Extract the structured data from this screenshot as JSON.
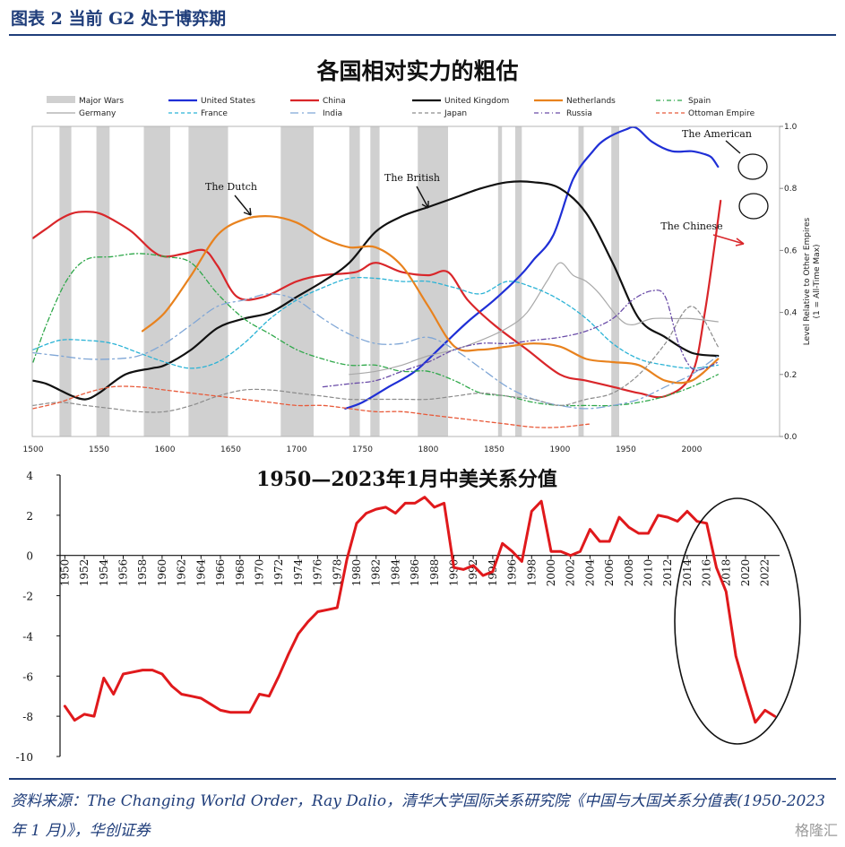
{
  "header": {
    "title": "图表 2   当前 G2 处于博弈期"
  },
  "footer": {
    "source": "资料来源：The Changing World Order，Ray Dalio，清华大学国际关系研究院《中国与大国关系分值表(1950-2023 年 1 月)》，华创证券",
    "watermark": "格隆汇"
  },
  "colors": {
    "brand": "#1f3d7a",
    "wars": "#d0d0d0",
    "us": "#1f2fd6",
    "china": "#d9262a",
    "uk": "#111111",
    "netherlands": "#e8821e",
    "spain": "#2fa84a",
    "germany": "#a9a9a9",
    "france": "#2bb3d6",
    "india": "#7fa6d6",
    "japan": "#8c8c8c",
    "russia": "#6a4ca8",
    "ottoman": "#e85a3a"
  },
  "chart_data": [
    {
      "type": "line",
      "title": "各国相对实力的粗估",
      "xlabel": "",
      "ylabel": "Level Relative to Other Empires (1 = All-Time Max)",
      "xlim": [
        1500,
        2030
      ],
      "ylim": [
        0,
        1.0
      ],
      "x_ticks": [
        1500,
        1550,
        1600,
        1650,
        1700,
        1750,
        1800,
        1850,
        1900,
        1950,
        2000
      ],
      "x_tick_labels": [
        "1500",
        "1550",
        "1600",
        "1650",
        "1700",
        "1750",
        "1800",
        "1850",
        "1900",
        "1950",
        "2000"
      ],
      "y_ticks": [
        0,
        0.2,
        0.4,
        0.6,
        0.8,
        1.0
      ],
      "y_tick_labels": [
        "0.0",
        "0.2",
        "0.4",
        "0.6",
        "0.8",
        "1.0"
      ],
      "legend_position": "top",
      "major_wars": [
        [
          1520,
          1529
        ],
        [
          1548,
          1558
        ],
        [
          1584,
          1604
        ],
        [
          1618,
          1648
        ],
        [
          1688,
          1713
        ],
        [
          1740,
          1748
        ],
        [
          1756,
          1763
        ],
        [
          1792,
          1815
        ],
        [
          1853,
          1856
        ],
        [
          1866,
          1871
        ],
        [
          1914,
          1918
        ],
        [
          1939,
          1945
        ]
      ],
      "annotations": [
        "The Dutch",
        "The British",
        "The American",
        "The Chinese"
      ],
      "series": [
        {
          "name": "Major Wars",
          "key": "wars",
          "style": "band",
          "x": [],
          "values": []
        },
        {
          "name": "United States",
          "key": "us",
          "style": "solid",
          "width": 2.2,
          "x": [
            1737,
            1750,
            1770,
            1790,
            1810,
            1830,
            1850,
            1870,
            1880,
            1895,
            1910,
            1925,
            1935,
            1950,
            1958,
            1970,
            1985,
            2000,
            2010,
            2015,
            2020
          ],
          "values": [
            0.09,
            0.11,
            0.16,
            0.21,
            0.29,
            0.37,
            0.44,
            0.52,
            0.57,
            0.65,
            0.83,
            0.92,
            0.96,
            0.99,
            0.995,
            0.95,
            0.92,
            0.92,
            0.91,
            0.9,
            0.87
          ]
        },
        {
          "name": "China",
          "key": "china",
          "style": "solid",
          "width": 2.2,
          "x": [
            1500,
            1510,
            1520,
            1530,
            1540,
            1550,
            1560,
            1575,
            1590,
            1600,
            1615,
            1630,
            1640,
            1655,
            1675,
            1700,
            1720,
            1745,
            1760,
            1780,
            1800,
            1815,
            1830,
            1850,
            1875,
            1900,
            1920,
            1940,
            1960,
            1980,
            2000,
            2010,
            2022
          ],
          "values": [
            0.64,
            0.67,
            0.7,
            0.72,
            0.725,
            0.72,
            0.7,
            0.66,
            0.6,
            0.58,
            0.59,
            0.6,
            0.55,
            0.45,
            0.45,
            0.5,
            0.52,
            0.53,
            0.56,
            0.53,
            0.52,
            0.53,
            0.44,
            0.36,
            0.28,
            0.2,
            0.18,
            0.16,
            0.14,
            0.13,
            0.2,
            0.4,
            0.76
          ]
        },
        {
          "name": "United Kingdom",
          "key": "uk",
          "style": "solid",
          "width": 2.2,
          "x": [
            1500,
            1510,
            1520,
            1530,
            1540,
            1550,
            1570,
            1590,
            1600,
            1620,
            1640,
            1660,
            1680,
            1700,
            1720,
            1740,
            1760,
            1780,
            1800,
            1820,
            1840,
            1860,
            1880,
            1900,
            1920,
            1940,
            1960,
            1980,
            2000,
            2020
          ],
          "values": [
            0.18,
            0.17,
            0.15,
            0.13,
            0.12,
            0.14,
            0.2,
            0.22,
            0.23,
            0.28,
            0.35,
            0.38,
            0.4,
            0.45,
            0.5,
            0.56,
            0.66,
            0.71,
            0.74,
            0.77,
            0.8,
            0.82,
            0.82,
            0.8,
            0.72,
            0.56,
            0.38,
            0.32,
            0.27,
            0.26
          ]
        },
        {
          "name": "Netherlands",
          "key": "netherlands",
          "style": "solid",
          "width": 2.2,
          "x": [
            1583,
            1600,
            1620,
            1640,
            1660,
            1680,
            1700,
            1720,
            1740,
            1760,
            1780,
            1800,
            1820,
            1840,
            1860,
            1880,
            1900,
            1920,
            1940,
            1960,
            1980,
            2000,
            2020
          ],
          "values": [
            0.34,
            0.4,
            0.52,
            0.65,
            0.7,
            0.71,
            0.69,
            0.64,
            0.61,
            0.61,
            0.55,
            0.42,
            0.29,
            0.28,
            0.29,
            0.3,
            0.29,
            0.25,
            0.24,
            0.23,
            0.18,
            0.18,
            0.25
          ]
        },
        {
          "name": "Spain",
          "key": "spain",
          "style": "dashdot",
          "width": 1.3,
          "x": [
            1500,
            1510,
            1525,
            1540,
            1560,
            1580,
            1600,
            1620,
            1640,
            1660,
            1680,
            1700,
            1720,
            1740,
            1760,
            1780,
            1800,
            1820,
            1840,
            1860,
            1880,
            1900,
            1920,
            1940,
            1960,
            1980,
            2000,
            2020
          ],
          "values": [
            0.24,
            0.36,
            0.5,
            0.57,
            0.58,
            0.59,
            0.58,
            0.56,
            0.46,
            0.38,
            0.33,
            0.28,
            0.25,
            0.23,
            0.23,
            0.21,
            0.21,
            0.18,
            0.14,
            0.13,
            0.11,
            0.1,
            0.1,
            0.1,
            0.11,
            0.13,
            0.16,
            0.2
          ]
        },
        {
          "name": "Germany",
          "key": "germany",
          "style": "solid",
          "width": 1.2,
          "x": [
            1740,
            1760,
            1780,
            1800,
            1820,
            1840,
            1860,
            1875,
            1890,
            1900,
            1910,
            1920,
            1930,
            1945,
            1955,
            1970,
            1990,
            2000,
            2020
          ],
          "values": [
            0.2,
            0.21,
            0.23,
            0.26,
            0.28,
            0.31,
            0.35,
            0.4,
            0.5,
            0.56,
            0.52,
            0.5,
            0.46,
            0.38,
            0.36,
            0.38,
            0.38,
            0.38,
            0.37
          ]
        },
        {
          "name": "France",
          "key": "france",
          "style": "dash",
          "width": 1.3,
          "x": [
            1500,
            1520,
            1540,
            1560,
            1580,
            1600,
            1620,
            1640,
            1660,
            1680,
            1700,
            1720,
            1740,
            1760,
            1780,
            1800,
            1820,
            1840,
            1860,
            1880,
            1900,
            1920,
            1940,
            1960,
            1980,
            2000,
            2020
          ],
          "values": [
            0.28,
            0.31,
            0.31,
            0.3,
            0.27,
            0.24,
            0.22,
            0.24,
            0.3,
            0.38,
            0.44,
            0.48,
            0.51,
            0.51,
            0.5,
            0.5,
            0.48,
            0.46,
            0.5,
            0.48,
            0.44,
            0.38,
            0.3,
            0.25,
            0.23,
            0.22,
            0.23
          ]
        },
        {
          "name": "India",
          "key": "india",
          "style": "longdashdot",
          "width": 1.3,
          "x": [
            1500,
            1520,
            1540,
            1560,
            1580,
            1600,
            1620,
            1640,
            1660,
            1680,
            1700,
            1720,
            1740,
            1760,
            1780,
            1800,
            1820,
            1840,
            1860,
            1880,
            1900,
            1920,
            1940,
            1960,
            1980,
            2000,
            2020
          ],
          "values": [
            0.27,
            0.26,
            0.25,
            0.25,
            0.26,
            0.3,
            0.36,
            0.42,
            0.44,
            0.46,
            0.44,
            0.38,
            0.33,
            0.3,
            0.3,
            0.32,
            0.28,
            0.22,
            0.16,
            0.12,
            0.1,
            0.09,
            0.1,
            0.12,
            0.16,
            0.2,
            0.26
          ]
        },
        {
          "name": "Japan",
          "key": "japan",
          "style": "dash",
          "width": 1.2,
          "x": [
            1500,
            1520,
            1540,
            1560,
            1580,
            1600,
            1620,
            1640,
            1660,
            1680,
            1700,
            1720,
            1740,
            1760,
            1780,
            1800,
            1820,
            1840,
            1860,
            1880,
            1900,
            1920,
            1940,
            1960,
            1980,
            2000,
            2020
          ],
          "values": [
            0.1,
            0.11,
            0.1,
            0.09,
            0.08,
            0.08,
            0.1,
            0.13,
            0.15,
            0.15,
            0.14,
            0.13,
            0.12,
            0.12,
            0.12,
            0.12,
            0.13,
            0.14,
            0.13,
            0.12,
            0.1,
            0.12,
            0.14,
            0.2,
            0.3,
            0.42,
            0.29
          ]
        },
        {
          "name": "Russia",
          "key": "russia",
          "style": "dashdot",
          "width": 1.3,
          "x": [
            1720,
            1740,
            1760,
            1780,
            1800,
            1820,
            1840,
            1860,
            1880,
            1900,
            1920,
            1940,
            1955,
            1970,
            1980,
            1990,
            2000,
            2010,
            2020
          ],
          "values": [
            0.16,
            0.17,
            0.18,
            0.21,
            0.24,
            0.28,
            0.3,
            0.3,
            0.31,
            0.32,
            0.34,
            0.38,
            0.44,
            0.47,
            0.45,
            0.3,
            0.22,
            0.22,
            0.24
          ]
        },
        {
          "name": "Ottoman Empire",
          "key": "ottoman",
          "style": "dash",
          "width": 1.3,
          "x": [
            1500,
            1520,
            1540,
            1560,
            1580,
            1600,
            1620,
            1640,
            1660,
            1680,
            1700,
            1720,
            1740,
            1760,
            1780,
            1800,
            1820,
            1840,
            1860,
            1880,
            1900,
            1922
          ],
          "values": [
            0.09,
            0.11,
            0.14,
            0.16,
            0.16,
            0.15,
            0.14,
            0.13,
            0.12,
            0.11,
            0.1,
            0.1,
            0.09,
            0.08,
            0.08,
            0.07,
            0.06,
            0.05,
            0.04,
            0.03,
            0.03,
            0.04
          ]
        }
      ]
    },
    {
      "type": "line",
      "title": "1950—2023年1月中美关系分值",
      "xlabel": "",
      "ylabel": "",
      "ylim": [
        -10,
        4
      ],
      "y_ticks": [
        4,
        2,
        0,
        -2,
        -4,
        -6,
        -8,
        -10
      ],
      "y_tick_labels": [
        "4",
        "2",
        "0",
        "-2",
        "-4",
        "-6",
        "-8",
        "-10"
      ],
      "x_tick_labels": [
        "1950",
        "1952",
        "1954",
        "1956",
        "1958",
        "1960",
        "1962",
        "1964",
        "1966",
        "1968",
        "1970",
        "1972",
        "1974",
        "1976",
        "1978",
        "1980",
        "1982",
        "1984",
        "1986",
        "1988",
        "1990",
        "1992",
        "1994",
        "1996",
        "1998",
        "2000",
        "2002",
        "2004",
        "2006",
        "2008",
        "2010",
        "2012",
        "2014",
        "2016",
        "2018",
        "2020",
        "2022"
      ],
      "xlim": [
        1949.5,
        2023.5
      ],
      "series": [
        {
          "name": "",
          "color": "#e0191c",
          "x": [
            1950,
            1951,
            1952,
            1953,
            1954,
            1955,
            1956,
            1957,
            1958,
            1959,
            1960,
            1961,
            1962,
            1963,
            1964,
            1965,
            1966,
            1967,
            1968,
            1969,
            1970,
            1971,
            1972,
            1973,
            1974,
            1975,
            1976,
            1977,
            1978,
            1979,
            1980,
            1981,
            1982,
            1983,
            1984,
            1985,
            1986,
            1987,
            1988,
            1989,
            1990,
            1991,
            1992,
            1993,
            1994,
            1995,
            1996,
            1997,
            1998,
            1999,
            2000,
            2001,
            2002,
            2003,
            2004,
            2005,
            2006,
            2007,
            2008,
            2009,
            2010,
            2011,
            2012,
            2013,
            2014,
            2015,
            2016,
            2017,
            2018,
            2019,
            2020,
            2021,
            2022,
            2023
          ],
          "values": [
            -7.5,
            -8.2,
            -7.9,
            -8.0,
            -6.1,
            -6.9,
            -5.9,
            -5.8,
            -5.7,
            -5.7,
            -5.9,
            -6.5,
            -6.9,
            -7.0,
            -7.1,
            -7.4,
            -7.7,
            -7.8,
            -7.8,
            -7.8,
            -6.9,
            -7.0,
            -6.0,
            -4.9,
            -3.9,
            -3.3,
            -2.8,
            -2.7,
            -2.6,
            -0.2,
            1.6,
            2.1,
            2.3,
            2.4,
            2.1,
            2.6,
            2.6,
            2.9,
            2.4,
            2.6,
            -0.6,
            -0.7,
            -0.5,
            -1.0,
            -0.8,
            0.6,
            0.2,
            -0.3,
            2.2,
            2.7,
            0.2,
            0.2,
            0.0,
            0.2,
            1.3,
            0.7,
            0.7,
            1.9,
            1.4,
            1.1,
            1.1,
            2.0,
            1.9,
            1.7,
            2.2,
            1.7,
            1.6,
            -0.6,
            -1.8,
            -5.0,
            -6.7,
            -8.3,
            -7.7,
            -8.0
          ]
        }
      ]
    }
  ]
}
